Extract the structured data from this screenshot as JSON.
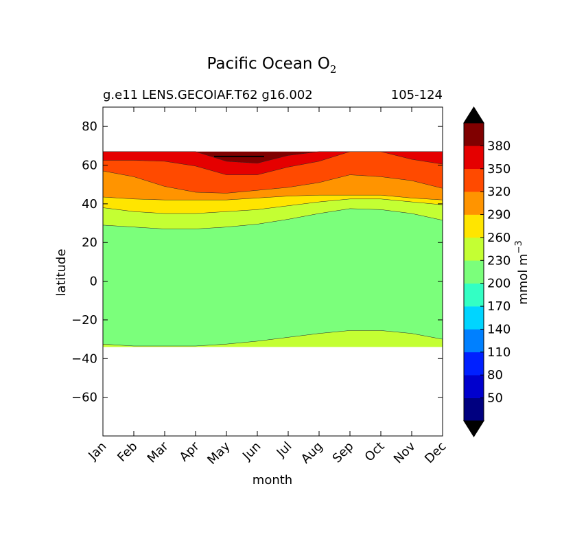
{
  "chart_data": {
    "type": "heatmap",
    "title": "Pacific Ocean O",
    "title_subscript": "2",
    "subtitle_left": "g.e11 LENS.GECOIAF.T62 g16.002",
    "subtitle_right": "105-124",
    "xlabel": "month",
    "ylabel": "latitude",
    "xticks": [
      "Jan",
      "Feb",
      "Mar",
      "Apr",
      "May",
      "Jun",
      "Jul",
      "Aug",
      "Sep",
      "Oct",
      "Nov",
      "Dec"
    ],
    "yticks": [
      80,
      60,
      40,
      20,
      0,
      -20,
      -40,
      -60
    ],
    "yticks_labels": [
      "80",
      "60",
      "40",
      "20",
      "0",
      "−20",
      "−40",
      "−60"
    ],
    "ylim": [
      -80,
      90
    ],
    "data_lat_range": [
      -34,
      67
    ],
    "colorbar": {
      "label": "mmol m",
      "label_superscript": "−3",
      "ticks": [
        50,
        80,
        110,
        140,
        170,
        200,
        230,
        260,
        290,
        320,
        350,
        380
      ],
      "ticks_labels": [
        "50",
        "80",
        "110",
        "140",
        "170",
        "200",
        "230",
        "260",
        "290",
        "320",
        "350",
        "380"
      ],
      "levels": [
        20,
        50,
        80,
        110,
        140,
        170,
        200,
        230,
        260,
        290,
        320,
        350,
        380,
        410
      ],
      "colors": [
        "#000080",
        "#0000cd",
        "#0020ff",
        "#0080ff",
        "#00d5ff",
        "#33ffc4",
        "#7bff7b",
        "#c4ff33",
        "#ffe500",
        "#ff9400",
        "#ff4a00",
        "#e50000",
        "#800000"
      ],
      "extend_low_color": "#000000",
      "extend_high_color": "#000000"
    },
    "contour_boundaries": [
      {
        "level": 230,
        "side": "south",
        "lat": [
          -32.5,
          -33.5,
          -33.5,
          -33.5,
          -32.5,
          -31,
          -29,
          -27,
          -25.5,
          -25.5,
          -27,
          -30
        ]
      },
      {
        "level": 230,
        "side": "north",
        "lat": [
          29,
          28,
          27,
          27,
          28,
          29.5,
          32,
          35,
          37.5,
          37,
          35,
          31.5
        ]
      },
      {
        "level": 260,
        "lat": [
          38,
          36,
          35,
          35,
          36,
          37,
          39,
          41,
          42.5,
          42.5,
          41,
          39.5
        ]
      },
      {
        "level": 290,
        "lat": [
          43.5,
          42.5,
          42,
          42,
          42,
          43,
          44,
          44.5,
          44.5,
          44.5,
          43,
          42
        ]
      },
      {
        "level": 320,
        "lat": [
          57,
          54,
          49,
          46,
          45.5,
          47,
          48.5,
          51,
          55,
          54,
          52,
          48
        ]
      },
      {
        "level": 350,
        "lat": [
          62.5,
          62.5,
          62,
          59.5,
          55,
          55,
          59,
          62,
          67,
          67,
          63,
          60.5
        ]
      },
      {
        "level": 380,
        "lat": [
          67,
          67,
          67,
          67,
          62,
          61,
          65,
          67,
          67,
          67,
          67,
          67
        ]
      }
    ]
  }
}
